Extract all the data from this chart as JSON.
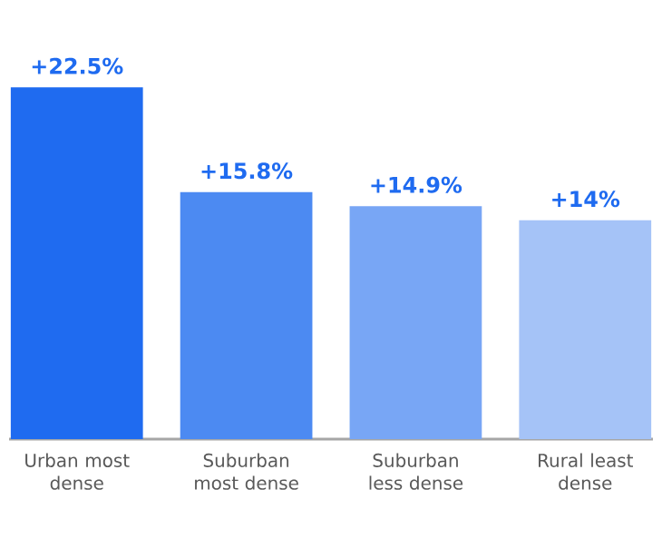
{
  "chart_data": {
    "type": "bar",
    "categories": [
      "Urban most dense",
      "Suburban most dense",
      "Suburban less dense",
      "Rural least dense"
    ],
    "values": [
      22.5,
      15.8,
      14.9,
      14
    ],
    "value_labels": [
      "+22.5%",
      "+15.8%",
      "+14.9%",
      "+14%"
    ],
    "colors": [
      "#1f6bf0",
      "#4c8af2",
      "#78a6f5",
      "#a5c3f7"
    ]
  }
}
